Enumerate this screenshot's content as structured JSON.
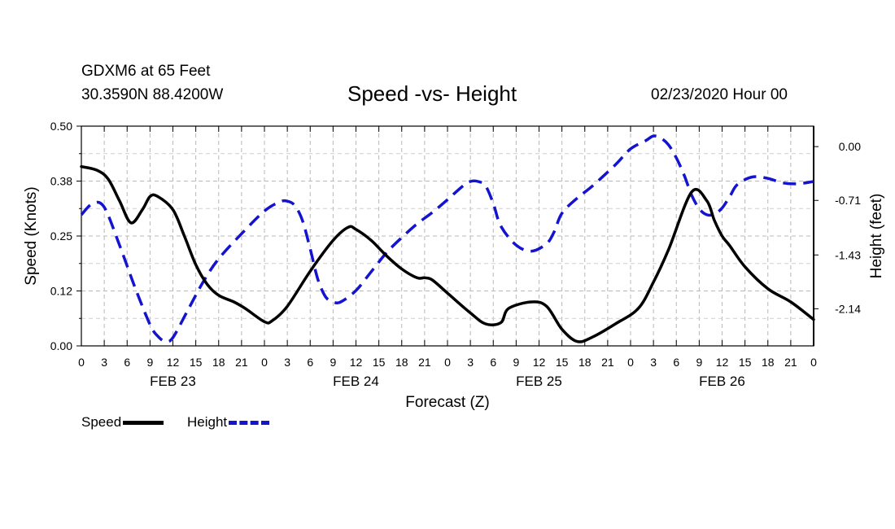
{
  "header": {
    "station": "GDXM6 at 65 Feet",
    "coordinates": "30.3590N 88.4200W",
    "title": "Speed -vs- Height",
    "datetime": "02/23/2020 Hour 00"
  },
  "chart_data": {
    "type": "line",
    "title": "Speed -vs- Height",
    "xlabel": "Forecast (Z)",
    "ylabel_left": "Speed (Knots)",
    "ylabel_right": "Height (feet)",
    "x_hours_range": [
      0,
      96
    ],
    "x_tick_step_hours": 3,
    "x_tick_labels": [
      "0",
      "3",
      "6",
      "9",
      "12",
      "15",
      "18",
      "21",
      "0",
      "3",
      "6",
      "9",
      "12",
      "15",
      "18",
      "21",
      "0",
      "3",
      "6",
      "9",
      "12",
      "15",
      "18",
      "21",
      "0",
      "3",
      "6",
      "9",
      "12",
      "15",
      "18",
      "21",
      "0"
    ],
    "day_labels": [
      {
        "hour": 12,
        "label": "FEB 23"
      },
      {
        "hour": 36,
        "label": "FEB 24"
      },
      {
        "hour": 60,
        "label": "FEB 25"
      },
      {
        "hour": 84,
        "label": "FEB 26"
      }
    ],
    "left_axis": {
      "range": [
        0,
        0.5
      ],
      "ticks": [
        0.0,
        0.125,
        0.25,
        0.375,
        0.5
      ],
      "tick_labels": [
        "0.00",
        "0.12",
        "0.25",
        "0.38",
        "0.50"
      ]
    },
    "right_axis": {
      "range": [
        -2.63,
        0.27
      ],
      "ticks": [
        0.0,
        -0.71,
        -1.43,
        -2.14
      ],
      "tick_labels": [
        "0.00",
        "-0.71",
        "-1.43",
        "-2.14"
      ]
    },
    "grid": true,
    "series": [
      {
        "name": "Speed",
        "axis": "left",
        "color": "#000000",
        "dash": "solid",
        "x": [
          0,
          2,
          3.5,
          5,
          6.5,
          8,
          9,
          10,
          12,
          13.5,
          15,
          16.5,
          18,
          20,
          21.5,
          24,
          25,
          27,
          30,
          33,
          35,
          36,
          38,
          40,
          42,
          44,
          45,
          46,
          48,
          51,
          53,
          55,
          56,
          59,
          61,
          63,
          65,
          67,
          70,
          73,
          75,
          77,
          80,
          82,
          83,
          84,
          85,
          87,
          90,
          93,
          96
        ],
        "y": [
          0.408,
          0.4,
          0.38,
          0.33,
          0.28,
          0.31,
          0.34,
          0.34,
          0.31,
          0.25,
          0.185,
          0.14,
          0.115,
          0.1,
          0.085,
          0.055,
          0.057,
          0.09,
          0.17,
          0.24,
          0.27,
          0.265,
          0.24,
          0.205,
          0.175,
          0.155,
          0.155,
          0.15,
          0.12,
          0.075,
          0.05,
          0.053,
          0.085,
          0.1,
          0.09,
          0.038,
          0.01,
          0.02,
          0.05,
          0.085,
          0.145,
          0.22,
          0.35,
          0.33,
          0.285,
          0.25,
          0.228,
          0.18,
          0.13,
          0.1,
          0.06
        ]
      },
      {
        "name": "Height",
        "axis": "right",
        "color": "#1414d0",
        "dash": "dashed",
        "x": [
          0,
          1.5,
          3,
          5,
          7,
          9,
          10,
          11,
          12,
          14,
          16,
          18,
          21,
          24,
          26,
          27,
          28,
          29,
          30,
          31,
          32,
          33,
          34,
          36,
          38,
          40,
          42,
          44,
          46,
          48,
          50,
          51,
          52,
          53,
          54,
          55,
          57,
          59,
          61,
          62,
          63,
          65,
          67,
          70,
          72,
          74,
          75,
          76,
          77,
          78,
          79,
          80,
          81,
          82,
          83,
          84,
          85,
          86,
          88,
          90,
          92,
          94,
          96
        ],
        "y": [
          -0.9,
          -0.75,
          -0.8,
          -1.3,
          -1.85,
          -2.35,
          -2.5,
          -2.57,
          -2.52,
          -2.15,
          -1.78,
          -1.48,
          -1.15,
          -0.85,
          -0.73,
          -0.72,
          -0.78,
          -0.98,
          -1.35,
          -1.75,
          -1.98,
          -2.05,
          -2.05,
          -1.9,
          -1.65,
          -1.4,
          -1.2,
          -1.02,
          -0.87,
          -0.7,
          -0.52,
          -0.46,
          -0.46,
          -0.52,
          -0.75,
          -1.05,
          -1.3,
          -1.38,
          -1.28,
          -1.12,
          -0.88,
          -0.68,
          -0.52,
          -0.24,
          -0.03,
          0.08,
          0.14,
          0.11,
          0.02,
          -0.15,
          -0.37,
          -0.64,
          -0.82,
          -0.9,
          -0.89,
          -0.81,
          -0.66,
          -0.5,
          -0.4,
          -0.42,
          -0.48,
          -0.49,
          -0.46
        ]
      }
    ],
    "legend": [
      {
        "label": "Speed",
        "color": "#000000",
        "dash": "solid"
      },
      {
        "label": "Height",
        "color": "#1414d0",
        "dash": "dashed"
      }
    ],
    "legend_position": "bottom-left"
  }
}
